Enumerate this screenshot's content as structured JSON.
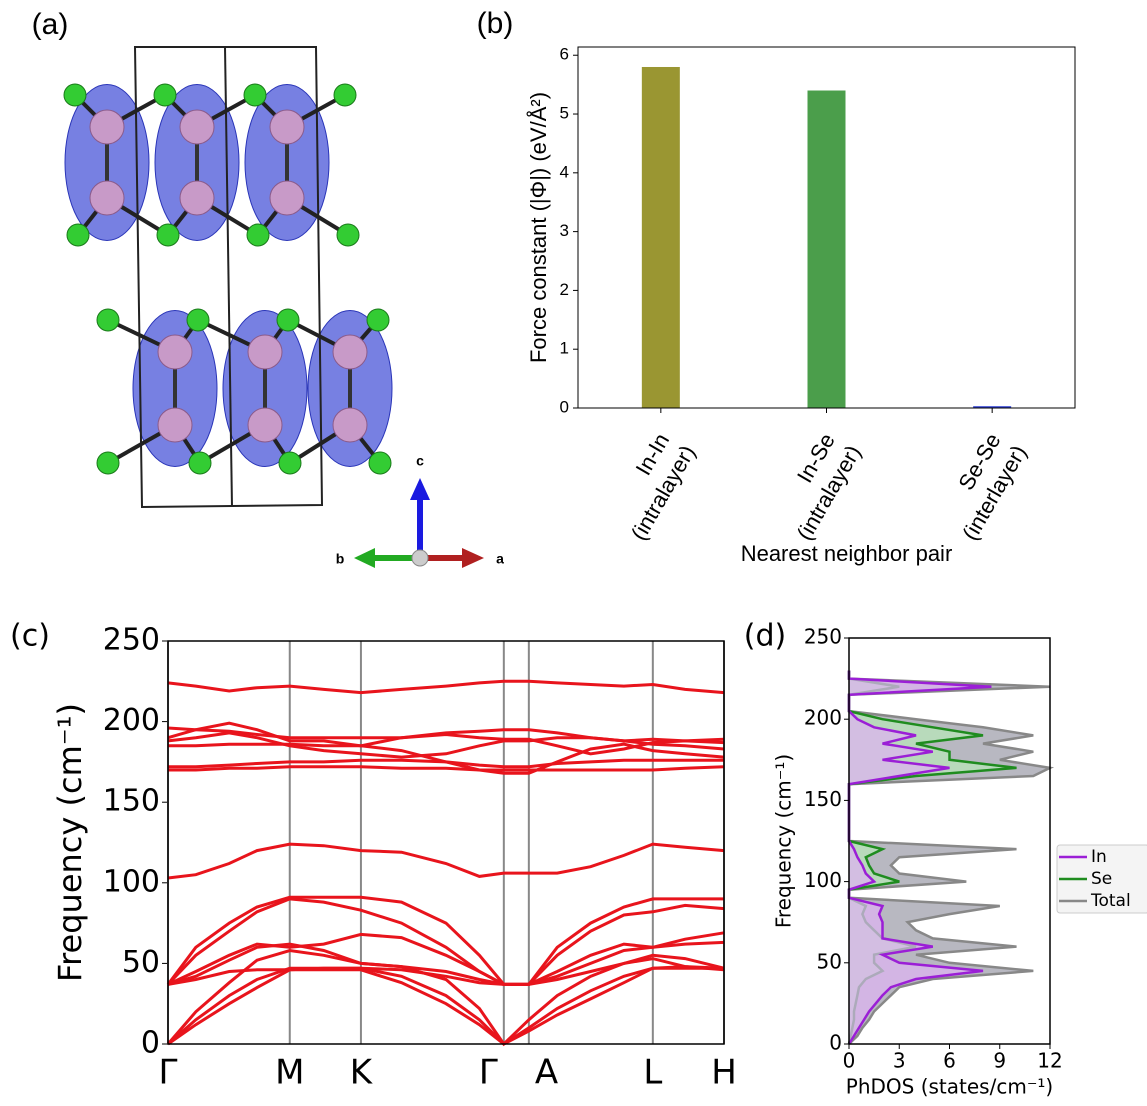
{
  "structure": {
    "panel_label": "(a)",
    "axis_labels": [
      "c",
      "b",
      "a"
    ]
  },
  "chart_data": [
    {
      "type": "bar",
      "panel_label": "(b)",
      "categories": [
        [
          "In-In",
          "(intralayer)"
        ],
        [
          "In-Se",
          "(intralayer)"
        ],
        [
          "Se-Se",
          "(interlayer)"
        ]
      ],
      "values": [
        5.8,
        5.4,
        0.03
      ],
      "colors": [
        "#9a9632",
        "#4b9e4b",
        "#2b3bd1"
      ],
      "ylabel": "Force constant (|Φ|) (eV/Å²)",
      "xlabel": "Nearest neighbor pair",
      "ylim": [
        0,
        6.14
      ],
      "yticks": [
        0,
        1,
        2,
        3,
        4,
        5,
        6
      ]
    },
    {
      "type": "line",
      "panel_label": "(c)",
      "ylabel": "Frequency (cm⁻¹)",
      "color": "#e8141c",
      "x": [
        0,
        0.05,
        0.11,
        0.16,
        0.219,
        0.28,
        0.347,
        0.42,
        0.5,
        0.56,
        0.604,
        0.649,
        0.7,
        0.76,
        0.82,
        0.872,
        0.93,
        1
      ],
      "series": [
        {
          "values": [
            0,
            12,
            25,
            35,
            46,
            46,
            46,
            38,
            25,
            12,
            0,
            8,
            18,
            28,
            38,
            47,
            47,
            47
          ]
        },
        {
          "values": [
            0,
            15,
            30,
            40,
            47,
            47,
            47,
            42,
            30,
            15,
            0,
            10,
            22,
            33,
            42,
            47,
            48,
            47
          ]
        },
        {
          "values": [
            0,
            20,
            38,
            52,
            58,
            55,
            50,
            48,
            40,
            22,
            0,
            15,
            30,
            42,
            50,
            53,
            48,
            46
          ]
        },
        {
          "values": [
            37,
            40,
            45,
            46,
            46,
            47,
            47,
            46,
            42,
            38,
            37,
            37,
            40,
            45,
            50,
            55,
            53,
            47
          ]
        },
        {
          "values": [
            37,
            42,
            52,
            60,
            62,
            58,
            50,
            48,
            45,
            40,
            37,
            37,
            42,
            50,
            58,
            60,
            62,
            63
          ]
        },
        {
          "values": [
            37,
            45,
            55,
            62,
            60,
            62,
            68,
            66,
            55,
            45,
            37,
            37,
            45,
            55,
            62,
            60,
            65,
            69
          ]
        },
        {
          "values": [
            37,
            55,
            70,
            82,
            90,
            88,
            83,
            75,
            60,
            45,
            37,
            37,
            55,
            70,
            80,
            82,
            86,
            84
          ]
        },
        {
          "values": [
            37,
            60,
            75,
            85,
            91,
            91,
            91,
            88,
            75,
            55,
            37,
            37,
            60,
            75,
            85,
            90,
            90,
            90
          ]
        },
        {
          "values": [
            103,
            105,
            112,
            120,
            124,
            123,
            120,
            119,
            112,
            104,
            106,
            106,
            106,
            110,
            117,
            124,
            122,
            120
          ]
        },
        {
          "values": [
            170,
            170,
            171,
            171,
            172,
            172,
            172,
            171,
            171,
            170,
            170,
            170,
            170,
            170,
            170,
            170,
            171,
            172
          ]
        },
        {
          "values": [
            172,
            172,
            173,
            174,
            175,
            175,
            176,
            176,
            175,
            173,
            172,
            172,
            174,
            175,
            176,
            176,
            176,
            176
          ]
        },
        {
          "values": [
            185,
            185,
            186,
            186,
            186,
            185,
            185,
            182,
            175,
            170,
            168,
            168,
            175,
            183,
            186,
            182,
            180,
            178
          ]
        },
        {
          "values": [
            188,
            190,
            193,
            190,
            185,
            182,
            180,
            178,
            180,
            185,
            188,
            188,
            190,
            190,
            188,
            186,
            185,
            183
          ]
        },
        {
          "values": [
            190,
            195,
            199,
            195,
            188,
            188,
            185,
            190,
            192,
            190,
            189,
            189,
            185,
            180,
            183,
            187,
            188,
            189
          ]
        },
        {
          "values": [
            196,
            195,
            194,
            192,
            190,
            190,
            190,
            190,
            193,
            194,
            195,
            195,
            193,
            190,
            188,
            189,
            188,
            187
          ]
        },
        {
          "values": [
            224,
            222,
            219,
            221,
            222,
            220,
            218,
            220,
            222,
            224,
            225,
            225,
            224,
            223,
            222,
            223,
            220,
            218
          ]
        }
      ],
      "xlim": [
        0,
        1
      ],
      "xticks": [
        {
          "value": 0,
          "label": "Γ"
        },
        {
          "value": 0.219,
          "label": "M"
        },
        {
          "value": 0.347,
          "label": "K"
        },
        {
          "value": 0.604,
          "label": "Γ"
        },
        {
          "value": 0.649,
          "label": "A"
        },
        {
          "value": 0.872,
          "label": "L"
        },
        {
          "value": 1,
          "label": "H"
        }
      ],
      "ylim": [
        0,
        250
      ],
      "yticks": [
        0,
        50,
        100,
        150,
        200,
        250
      ],
      "grid": true
    },
    {
      "type": "area",
      "panel_label": "(d)",
      "ylabel": "Frequency (cm⁻¹)",
      "xlabel": "PhDOS (states/cm⁻¹)",
      "y": [
        0,
        5,
        10,
        15,
        20,
        25,
        30,
        35,
        40,
        45,
        50,
        55,
        60,
        65,
        70,
        75,
        80,
        85,
        90,
        95,
        100,
        105,
        110,
        115,
        120,
        125,
        130,
        135,
        140,
        145,
        150,
        155,
        160,
        165,
        170,
        175,
        180,
        185,
        190,
        195,
        200,
        205,
        210,
        215,
        220,
        225,
        230
      ],
      "series": [
        {
          "name": "Total",
          "color": "#888888",
          "fill": "#a0a0ac",
          "values": [
            0,
            0.5,
            0.8,
            1.2,
            1.5,
            2,
            2.5,
            3,
            5,
            11,
            6,
            4,
            10,
            5,
            4,
            3.5,
            6,
            9,
            0,
            0,
            7,
            3,
            2.5,
            3,
            10,
            0,
            0,
            0,
            0,
            0,
            0,
            0,
            0,
            11,
            12,
            9,
            11,
            8,
            11,
            8,
            4,
            0,
            0,
            0,
            12,
            0,
            0
          ]
        },
        {
          "name": "Se",
          "color": "#1f8c1f",
          "fill": "#b8e6b8",
          "values": [
            0,
            0.1,
            0.2,
            0.3,
            0.3,
            0.4,
            0.5,
            0.6,
            1,
            2,
            1.5,
            1.5,
            4,
            2,
            1.5,
            1,
            0.8,
            1,
            0,
            0,
            3,
            1.5,
            1.2,
            1,
            2,
            0,
            0,
            0,
            0,
            0,
            0,
            0,
            0,
            4,
            10,
            6,
            6,
            4,
            8,
            5,
            2,
            0,
            0,
            0,
            3,
            0,
            0
          ]
        },
        {
          "name": "In",
          "color": "#9b1fd6",
          "fill": "#dcb4ef",
          "values": [
            0,
            0.3,
            0.6,
            0.9,
            1.2,
            1.6,
            2,
            2.5,
            4,
            8,
            3,
            2,
            5,
            2,
            2,
            2,
            1.8,
            2,
            0,
            0,
            1.5,
            1,
            0.8,
            0.5,
            0.3,
            0,
            0,
            0,
            0,
            0,
            0,
            0,
            0,
            3,
            6,
            2,
            5,
            2,
            4,
            1.5,
            0.5,
            0,
            0,
            0,
            8.5,
            0,
            0
          ]
        }
      ],
      "legend_order": [
        2,
        1,
        0
      ],
      "legend": "outside right",
      "xlim": [
        0,
        12
      ],
      "xticks": [
        0,
        3,
        6,
        9,
        12
      ],
      "ylim": [
        0,
        250
      ],
      "yticks": [
        0,
        50,
        100,
        150,
        200,
        250
      ]
    }
  ]
}
